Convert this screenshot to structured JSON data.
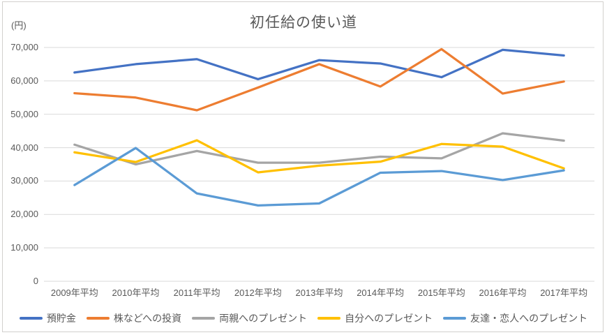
{
  "frame": {
    "background": "#FFFFFF",
    "border_color": "#D2D0CE"
  },
  "text_color": "#595959",
  "gridline_color": "#D9D9D9",
  "chart_data": {
    "type": "line",
    "title": "初任給の使い道",
    "ylabel": "(円)",
    "xlabel": "",
    "ylim": [
      0,
      70000
    ],
    "ytick_interval": 10000,
    "grid": true,
    "legend_position": "bottom",
    "categories": [
      "2009年平均",
      "2010年平均",
      "2011年平均",
      "2012年平均",
      "2013年平均",
      "2014年平均",
      "2015年平均",
      "2016年平均",
      "2017年平均"
    ],
    "series": [
      {
        "name": "預貯金",
        "key": "savings",
        "color": "#4472C4",
        "values": [
          62500,
          65000,
          66500,
          60500,
          66200,
          65200,
          61100,
          69300,
          67600
        ]
      },
      {
        "name": "株などへの投資",
        "key": "stock-investment",
        "color": "#ED7D31",
        "values": [
          56300,
          55000,
          51200,
          58000,
          65000,
          58300,
          69500,
          56200,
          59800
        ]
      },
      {
        "name": "両親へのプレゼント",
        "key": "gift-for-parents",
        "color": "#A5A5A5",
        "values": [
          40900,
          35000,
          39000,
          35500,
          35500,
          37300,
          36800,
          44300,
          42100
        ]
      },
      {
        "name": "自分へのプレゼント",
        "key": "gift-for-self",
        "color": "#FFC000",
        "values": [
          38600,
          35700,
          42200,
          32600,
          34600,
          35800,
          41100,
          40300,
          33800
        ]
      },
      {
        "name": "友達・恋人へのプレゼント",
        "key": "gift-for-friends-lover",
        "color": "#5B9BD5",
        "values": [
          28800,
          39900,
          26300,
          22700,
          23300,
          32500,
          33000,
          30300,
          33200
        ]
      }
    ]
  }
}
